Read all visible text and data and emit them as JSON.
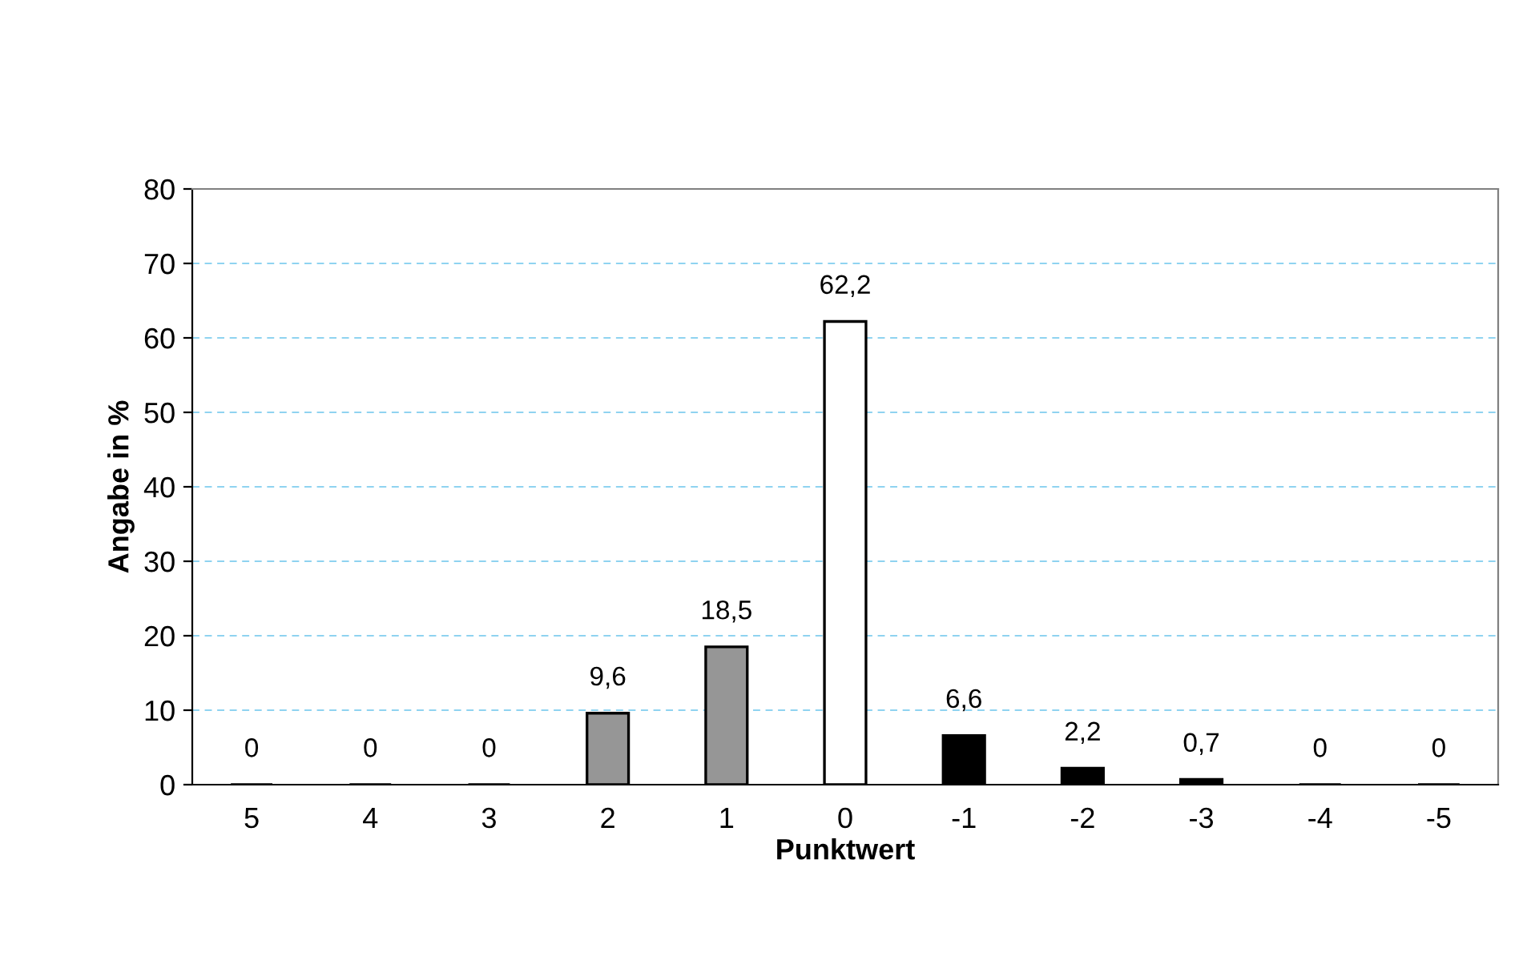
{
  "chart_data": {
    "type": "bar",
    "xlabel": "Punktwert",
    "ylabel": "Angabe in %",
    "categories": [
      "5",
      "4",
      "3",
      "2",
      "1",
      "0",
      "-1",
      "-2",
      "-3",
      "-4",
      "-5"
    ],
    "values": [
      0,
      0,
      0,
      9.6,
      18.5,
      62.2,
      6.6,
      2.2,
      0.7,
      0,
      0
    ],
    "colors": [
      "#000000",
      "#000000",
      "#000000",
      "#969696",
      "#969696",
      "#ffffff",
      "#000000",
      "#000000",
      "#000000",
      "#000000",
      "#000000"
    ],
    "value_labels": [
      "0",
      "0",
      "0",
      "9,6",
      "18,5",
      "62,2",
      "6,6",
      "2,2",
      "0,7",
      "0",
      "0"
    ],
    "ylim": [
      0,
      80
    ],
    "yticks": [
      0,
      10,
      20,
      30,
      40,
      50,
      60,
      70,
      80
    ],
    "grid": "y"
  }
}
